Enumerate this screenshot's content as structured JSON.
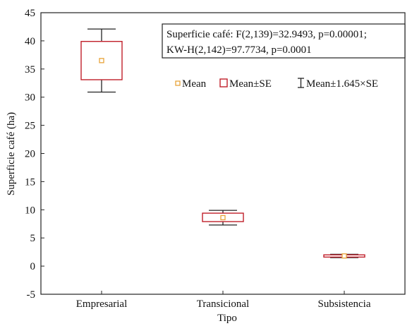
{
  "chart_data": {
    "type": "box",
    "xlabel": "Tipo",
    "ylabel": "Superficie café (ha)",
    "ylim": [
      -5,
      45
    ],
    "yticks": [
      -5,
      0,
      5,
      10,
      15,
      20,
      25,
      30,
      35,
      40,
      45
    ],
    "grid": false,
    "categories": [
      "Empresarial",
      "Transicional",
      "Subsistencia"
    ],
    "series": [
      {
        "category": "Empresarial",
        "mean": 36.5,
        "se_low": 33.1,
        "se_high": 39.9,
        "whisker_low": 30.9,
        "whisker_high": 42.1
      },
      {
        "category": "Transicional",
        "mean": 8.6,
        "se_low": 7.9,
        "se_high": 9.4,
        "whisker_low": 7.3,
        "whisker_high": 9.9
      },
      {
        "category": "Subsistencia",
        "mean": 1.8,
        "se_low": 1.6,
        "se_high": 2.0,
        "whisker_low": 1.5,
        "whisker_high": 2.1
      }
    ],
    "annotation": {
      "lines": [
        "Superficie café: F(2,139)=32.9493, p=0.00001;",
        "KW-H(2,142)=97.7734, p=0.0001"
      ]
    },
    "legend": {
      "placement": "top-right",
      "items": [
        {
          "marker": "small-square",
          "label": "Mean"
        },
        {
          "marker": "box",
          "label": "Mean±SE"
        },
        {
          "marker": "whisker",
          "label": "Mean±1.645×SE"
        }
      ]
    },
    "colors": {
      "mean_marker": "#e8a33a",
      "box_outline": "#c0202a",
      "whisker": "#222222",
      "axis": "#222222"
    }
  }
}
